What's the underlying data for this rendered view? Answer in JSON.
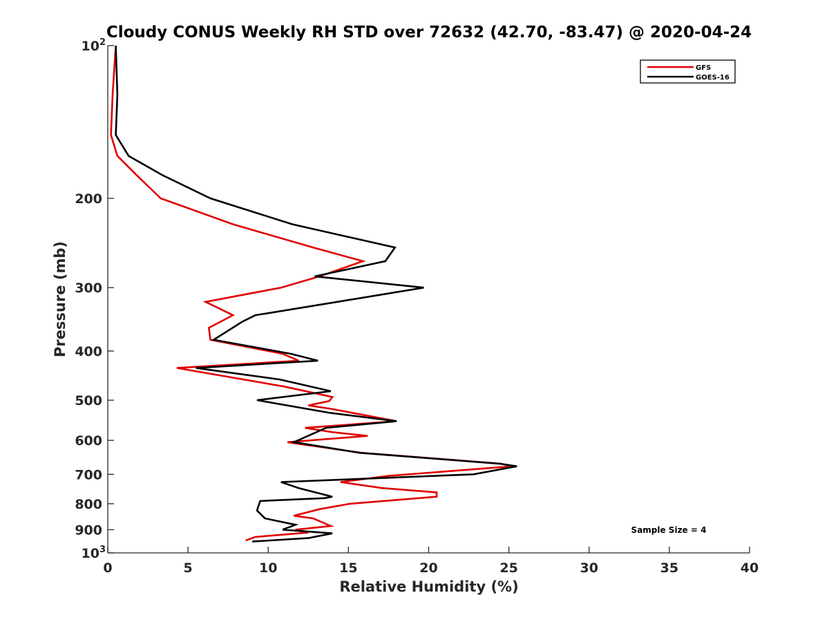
{
  "chart_data": {
    "type": "line",
    "title": "Cloudy CONUS Weekly RH STD over 72632 (42.70, -83.47) @ 2020-04-24",
    "xlabel": "Relative Humidity (%)",
    "ylabel": "Pressure (mb)",
    "xlim": [
      0,
      40
    ],
    "ylim": [
      100,
      1000
    ],
    "y_scale": "log",
    "y_reversed": true,
    "x_ticks": [
      "0",
      "5",
      "10",
      "15",
      "20",
      "25",
      "30",
      "35",
      "40"
    ],
    "y_ticks": [
      {
        "value": 100,
        "base": "10",
        "exp": "2"
      },
      {
        "value": 200,
        "label": "200"
      },
      {
        "value": 300,
        "label": "300"
      },
      {
        "value": 400,
        "label": "400"
      },
      {
        "value": 500,
        "label": "500"
      },
      {
        "value": 600,
        "label": "600"
      },
      {
        "value": 700,
        "label": "700"
      },
      {
        "value": 800,
        "label": "800"
      },
      {
        "value": 900,
        "label": "900"
      },
      {
        "value": 1000,
        "base": "10",
        "exp": "3"
      }
    ],
    "legend_position": "top-right",
    "annotation": "Sample Size = 4",
    "series": [
      {
        "name": "GFS",
        "color": "#e00000",
        "points": [
          [
            0.5,
            100
          ],
          [
            0.3,
            125
          ],
          [
            0.2,
            150
          ],
          [
            0.6,
            165
          ],
          [
            1.8,
            180
          ],
          [
            3.3,
            200
          ],
          [
            7.8,
            225
          ],
          [
            12.8,
            250
          ],
          [
            15.9,
            266
          ],
          [
            13.2,
            285
          ],
          [
            10.8,
            300
          ],
          [
            6.1,
            320
          ],
          [
            7.8,
            340
          ],
          [
            6.3,
            360
          ],
          [
            6.4,
            380
          ],
          [
            10.9,
            405
          ],
          [
            11.9,
            418
          ],
          [
            4.3,
            432
          ],
          [
            11.0,
            470
          ],
          [
            14.0,
            493
          ],
          [
            13.8,
            502
          ],
          [
            12.5,
            512
          ],
          [
            13.9,
            520
          ],
          [
            18.0,
            550
          ],
          [
            12.3,
            567
          ],
          [
            14.0,
            578
          ],
          [
            16.2,
            588
          ],
          [
            11.2,
            605
          ],
          [
            15.8,
            635
          ],
          [
            24.5,
            667
          ],
          [
            25.2,
            675
          ],
          [
            17.5,
            705
          ],
          [
            14.5,
            725
          ],
          [
            17.1,
            745
          ],
          [
            20.5,
            760
          ],
          [
            20.5,
            775
          ],
          [
            15.1,
            800
          ],
          [
            13.2,
            820
          ],
          [
            11.6,
            845
          ],
          [
            12.8,
            855
          ],
          [
            13.9,
            885
          ],
          [
            11.7,
            900
          ],
          [
            12.5,
            912
          ],
          [
            9.2,
            930
          ],
          [
            8.6,
            945
          ]
        ]
      },
      {
        "name": "GOES-16",
        "color": "#000000",
        "points": [
          [
            0.5,
            100
          ],
          [
            0.6,
            125
          ],
          [
            0.5,
            150
          ],
          [
            1.3,
            165
          ],
          [
            3.4,
            180
          ],
          [
            6.4,
            200
          ],
          [
            11.5,
            225
          ],
          [
            17.9,
            250
          ],
          [
            17.3,
            266
          ],
          [
            12.9,
            285
          ],
          [
            19.7,
            300
          ],
          [
            14.3,
            320
          ],
          [
            9.2,
            340
          ],
          [
            8.4,
            350
          ],
          [
            6.6,
            380
          ],
          [
            11.4,
            405
          ],
          [
            13.1,
            418
          ],
          [
            5.5,
            432
          ],
          [
            10.7,
            455
          ],
          [
            13.9,
            480
          ],
          [
            9.3,
            500
          ],
          [
            13.9,
            530
          ],
          [
            18.0,
            550
          ],
          [
            13.6,
            567
          ],
          [
            11.6,
            605
          ],
          [
            15.7,
            635
          ],
          [
            24.4,
            667
          ],
          [
            25.5,
            675
          ],
          [
            22.8,
            700
          ],
          [
            10.8,
            725
          ],
          [
            11.9,
            745
          ],
          [
            14.0,
            775
          ],
          [
            13.5,
            780
          ],
          [
            9.5,
            790
          ],
          [
            9.3,
            825
          ],
          [
            9.8,
            855
          ],
          [
            11.7,
            880
          ],
          [
            10.9,
            900
          ],
          [
            14.0,
            915
          ],
          [
            12.5,
            935
          ],
          [
            9.0,
            950
          ]
        ]
      }
    ]
  }
}
